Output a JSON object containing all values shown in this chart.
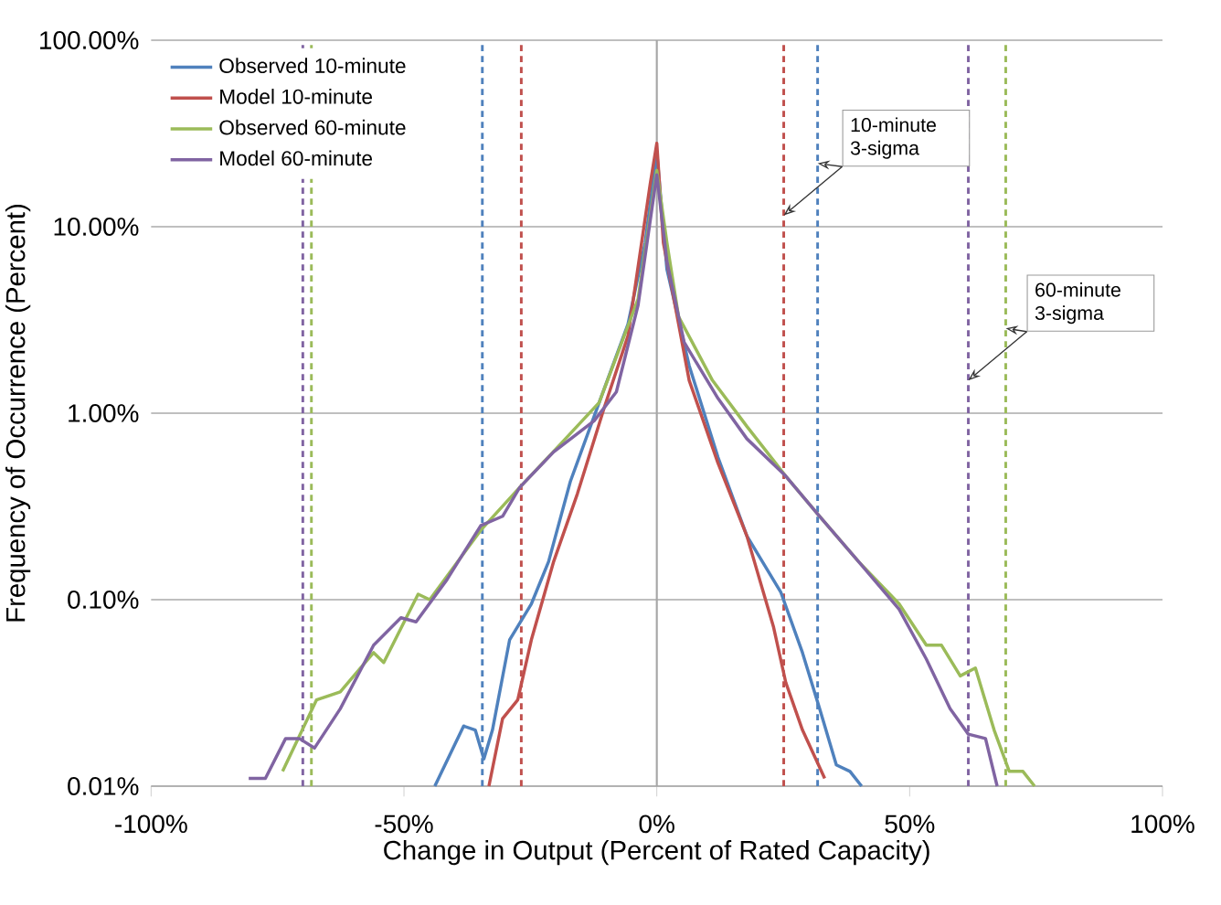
{
  "chart_data": {
    "type": "line",
    "xlabel": "Change in Output (Percent of Rated Capacity)",
    "ylabel": "Frequency of Occurrence (Percent)",
    "xlim": [
      -100,
      100
    ],
    "ylim": [
      0.01,
      100
    ],
    "xticks": [
      {
        "value": -100,
        "label": "-100%"
      },
      {
        "value": -50,
        "label": "-50%"
      },
      {
        "value": 0,
        "label": "0%"
      },
      {
        "value": 50,
        "label": "50%"
      },
      {
        "value": 100,
        "label": "100%"
      }
    ],
    "yticks": [
      {
        "value": 0.01,
        "label": "0.01%"
      },
      {
        "value": 0.1,
        "label": "0.10%"
      },
      {
        "value": 1,
        "label": "1.00%"
      },
      {
        "value": 10,
        "label": "10.00%"
      },
      {
        "value": 100,
        "label": "100.00%"
      }
    ],
    "log": "y",
    "grid": "y",
    "legend": "top left",
    "line_style": "solid",
    "series": [
      {
        "name": "Observed 10-minute",
        "color": "#4f81bd",
        "x": [
          -43.9,
          -38.2,
          -35.9,
          -34.2,
          -32.5,
          -29.1,
          -24.8,
          -21.4,
          -17.1,
          -11.4,
          -5.7,
          -2.3,
          0,
          2,
          6.4,
          12.1,
          17.8,
          24.5,
          28.8,
          32.2,
          35.5,
          38.2,
          40.5
        ],
        "values": [
          0.01,
          0.021,
          0.02,
          0.014,
          0.02,
          0.061,
          0.095,
          0.16,
          0.43,
          1.14,
          3.0,
          8.2,
          25,
          5.9,
          1.8,
          0.58,
          0.22,
          0.11,
          0.052,
          0.026,
          0.013,
          0.012,
          0.01
        ]
      },
      {
        "name": "Model 10-minute",
        "color": "#c0504d",
        "x": [
          -33.2,
          -30.5,
          -27.5,
          -24.8,
          -20.4,
          -15.7,
          -10.4,
          -5.7,
          -1.3,
          0,
          1.3,
          6.4,
          12.1,
          17.8,
          23.1,
          25.5,
          28.8,
          33.2
        ],
        "values": [
          0.01,
          0.023,
          0.029,
          0.061,
          0.16,
          0.37,
          1.07,
          2.6,
          17,
          28,
          8.2,
          1.5,
          0.54,
          0.22,
          0.071,
          0.036,
          0.02,
          0.011
        ]
      },
      {
        "name": "Observed 60-minute",
        "color": "#9bbb59",
        "x": [
          -74,
          -67.3,
          -62.6,
          -56,
          -54,
          -47.2,
          -44.9,
          -34.8,
          -27.1,
          -19.1,
          -11.4,
          -3.7,
          0,
          2,
          4.3,
          11,
          17.8,
          25.5,
          32.2,
          39.9,
          47.9,
          53.3,
          56.3,
          60,
          63,
          66.7,
          69.7,
          72.4,
          74.7
        ],
        "values": [
          0.012,
          0.029,
          0.032,
          0.052,
          0.046,
          0.107,
          0.1,
          0.236,
          0.4,
          0.68,
          1.14,
          4.1,
          20,
          8.2,
          3.3,
          1.5,
          0.85,
          0.46,
          0.28,
          0.16,
          0.095,
          0.057,
          0.057,
          0.039,
          0.043,
          0.02,
          0.012,
          0.012,
          0.01
        ]
      },
      {
        "name": "Model 60-minute",
        "color": "#8064a2",
        "x": [
          -80.7,
          -77.4,
          -73.4,
          -70.7,
          -67.7,
          -62.6,
          -56,
          -50.6,
          -47.6,
          -41.5,
          -34.8,
          -30.5,
          -27.1,
          -20.4,
          -12.4,
          -8,
          -3.7,
          0,
          2,
          5.4,
          12.1,
          17.8,
          25.5,
          32.2,
          39.9,
          47.9,
          53.3,
          58,
          61.6,
          65,
          67.3
        ],
        "values": [
          0.011,
          0.011,
          0.018,
          0.018,
          0.016,
          0.026,
          0.057,
          0.08,
          0.076,
          0.128,
          0.25,
          0.28,
          0.4,
          0.62,
          0.91,
          1.3,
          3.8,
          19,
          6.5,
          2.4,
          1.2,
          0.73,
          0.46,
          0.28,
          0.16,
          0.089,
          0.048,
          0.026,
          0.019,
          0.018,
          0.01
        ]
      }
    ],
    "ref_lines": [
      {
        "axis": "x",
        "value": -34.5,
        "color": "#4f81bd",
        "line_style": "dashed"
      },
      {
        "axis": "x",
        "value": -26.8,
        "color": "#c0504d",
        "line_style": "dashed"
      },
      {
        "axis": "x",
        "value": -70,
        "color": "#8064a2",
        "line_style": "dashed"
      },
      {
        "axis": "x",
        "value": -68.3,
        "color": "#9bbb59",
        "line_style": "dashed"
      },
      {
        "axis": "x",
        "value": 25.1,
        "color": "#c0504d",
        "line_style": "dashed"
      },
      {
        "axis": "x",
        "value": 31.8,
        "color": "#4f81bd",
        "line_style": "dashed"
      },
      {
        "axis": "x",
        "value": 61.6,
        "color": "#8064a2",
        "line_style": "dashed"
      },
      {
        "axis": "x",
        "value": 69,
        "color": "#9bbb59",
        "line_style": "dashed"
      }
    ],
    "annotations": [
      {
        "text": "10-minute 3-sigma",
        "x": 25.1,
        "y": 11.5
      },
      {
        "text": "60-minute 3-sigma",
        "x": 61.6,
        "y": 1.5
      }
    ]
  }
}
